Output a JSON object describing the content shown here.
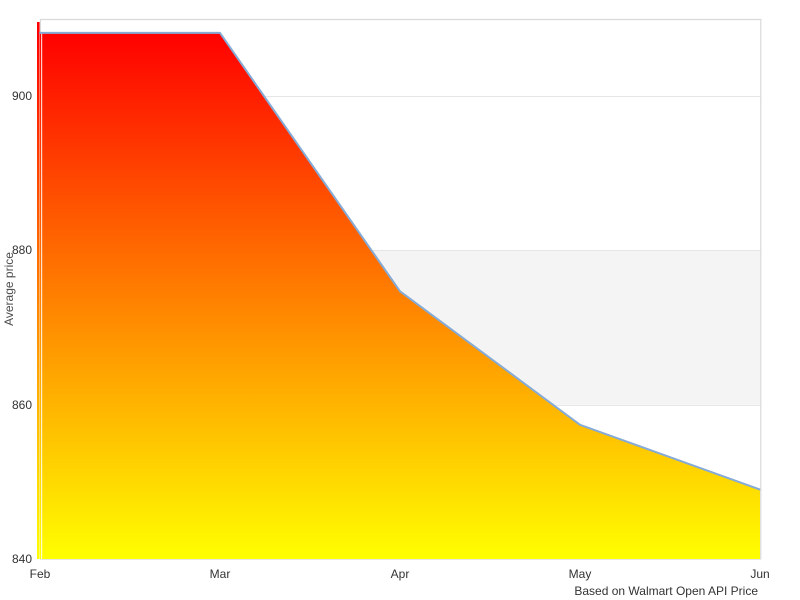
{
  "chart_data": {
    "type": "area",
    "title": "",
    "x": [
      "Feb",
      "Mar",
      "Apr",
      "May",
      "Jun"
    ],
    "series": [
      {
        "name": "Average price",
        "values": [
          908.2,
          908.2,
          874.7,
          857.4,
          849.0
        ]
      }
    ],
    "xlabel": "",
    "ylabel": "Average price",
    "ylim": [
      840,
      910
    ],
    "yticks": [
      840,
      860,
      880,
      900
    ],
    "grid": true,
    "legend": "none",
    "plot_band": {
      "from": 860,
      "to": 880,
      "color": "#f4f4f4"
    },
    "caption": "Based on Walmart Open API Price",
    "colors": {
      "line": "#85abd6",
      "area_gradient_top": "#ff0000",
      "area_gradient_bottom": "#ffff00",
      "gridline": "#e6e6e6",
      "border": "#d9d9d9",
      "tick_label": "#333333",
      "axis_title": "#4d4d4d",
      "background": "#ffffff"
    }
  }
}
